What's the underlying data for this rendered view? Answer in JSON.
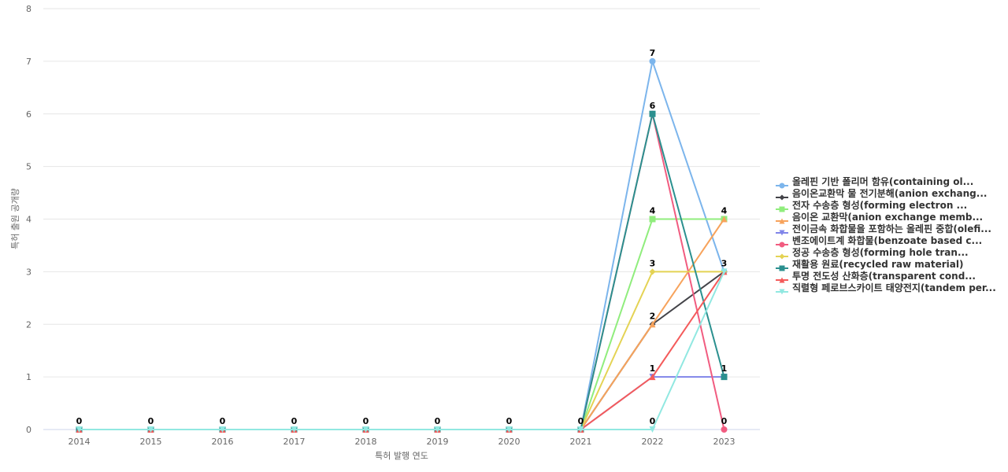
{
  "chart_data": {
    "type": "line",
    "xlabel": "특허 발행 연도",
    "ylabel": "특허 출원 공개량",
    "categories": [
      "2014",
      "2015",
      "2016",
      "2017",
      "2018",
      "2019",
      "2020",
      "2021",
      "2022",
      "2023"
    ],
    "ylim": [
      0,
      8
    ],
    "yticks": [
      0,
      1,
      2,
      3,
      4,
      5,
      6,
      7,
      8
    ],
    "grid": true,
    "legend_position": "right",
    "series": [
      {
        "name": "올레핀 기반 폴리머 함유(containing ol...",
        "color": "#7cb5ec",
        "marker": "circle",
        "values": [
          0,
          0,
          0,
          0,
          0,
          0,
          0,
          0,
          7,
          3
        ]
      },
      {
        "name": "음이온교환막 물 전기분해(anion exchang...",
        "color": "#434348",
        "marker": "diamond",
        "values": [
          0,
          0,
          0,
          0,
          0,
          0,
          0,
          0,
          2,
          3
        ]
      },
      {
        "name": "전자 수송층 형성(forming electron ...",
        "color": "#90ed7d",
        "marker": "square",
        "values": [
          0,
          0,
          0,
          0,
          0,
          0,
          0,
          0,
          4,
          4
        ]
      },
      {
        "name": "음이온 교환막(anion exchange memb...",
        "color": "#f7a35c",
        "marker": "triangle",
        "values": [
          0,
          0,
          0,
          0,
          0,
          0,
          0,
          0,
          2,
          4
        ]
      },
      {
        "name": "전이금속 화합물을 포함하는 올레핀 중합(olefi...",
        "color": "#8085e9",
        "marker": "triangle-down",
        "values": [
          0,
          0,
          0,
          0,
          0,
          0,
          0,
          0,
          1,
          1
        ]
      },
      {
        "name": "벤조에이트계 화합물(benzoate based c...",
        "color": "#f15c80",
        "marker": "circle",
        "values": [
          0,
          0,
          0,
          0,
          0,
          0,
          0,
          0,
          6,
          0
        ]
      },
      {
        "name": "정공 수송층 형성(forming hole tran...",
        "color": "#e4d354",
        "marker": "diamond",
        "values": [
          0,
          0,
          0,
          0,
          0,
          0,
          0,
          0,
          3,
          3
        ]
      },
      {
        "name": "재활용 원료(recycled raw material)",
        "color": "#2b908f",
        "marker": "square",
        "values": [
          0,
          0,
          0,
          0,
          0,
          0,
          0,
          0,
          6,
          1
        ]
      },
      {
        "name": "투명 전도성 산화층(transparent cond...",
        "color": "#f45b5b",
        "marker": "triangle",
        "values": [
          0,
          0,
          0,
          0,
          0,
          0,
          0,
          0,
          1,
          3
        ]
      },
      {
        "name": "직렬형 페로브스카이트 태양전지(tandem per...",
        "color": "#91e8e1",
        "marker": "triangle-down",
        "values": [
          0,
          0,
          0,
          0,
          0,
          0,
          0,
          0,
          0,
          3
        ]
      }
    ],
    "data_labels": [
      {
        "x": "2014",
        "y": 0,
        "text": "0"
      },
      {
        "x": "2015",
        "y": 0,
        "text": "0"
      },
      {
        "x": "2016",
        "y": 0,
        "text": "0"
      },
      {
        "x": "2017",
        "y": 0,
        "text": "0"
      },
      {
        "x": "2018",
        "y": 0,
        "text": "0"
      },
      {
        "x": "2019",
        "y": 0,
        "text": "0"
      },
      {
        "x": "2020",
        "y": 0,
        "text": "0"
      },
      {
        "x": "2021",
        "y": 0,
        "text": "0"
      },
      {
        "x": "2022",
        "y": 7,
        "text": "7"
      },
      {
        "x": "2022",
        "y": 6,
        "text": "6"
      },
      {
        "x": "2022",
        "y": 4,
        "text": "4"
      },
      {
        "x": "2022",
        "y": 3,
        "text": "3"
      },
      {
        "x": "2022",
        "y": 2,
        "text": "2"
      },
      {
        "x": "2022",
        "y": 1,
        "text": "1"
      },
      {
        "x": "2022",
        "y": 0,
        "text": "0"
      },
      {
        "x": "2023",
        "y": 4,
        "text": "4"
      },
      {
        "x": "2023",
        "y": 3,
        "text": "3"
      },
      {
        "x": "2023",
        "y": 1,
        "text": "1"
      },
      {
        "x": "2023",
        "y": 0,
        "text": "0"
      }
    ]
  }
}
